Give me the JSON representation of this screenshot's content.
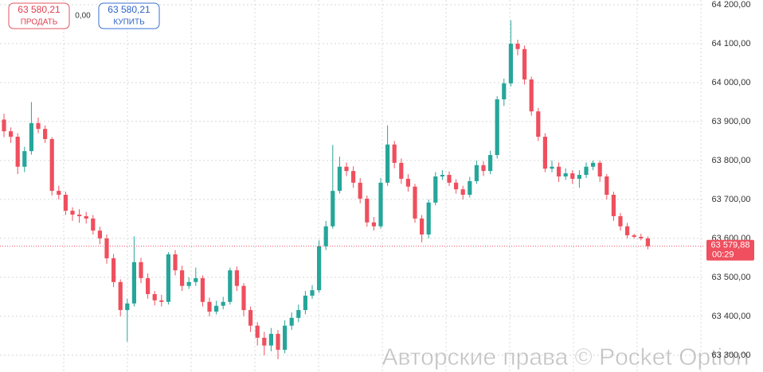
{
  "chart_data": {
    "type": "candlestick",
    "ylim": [
      63257,
      64212
    ],
    "yticks": [
      {
        "value": 63300,
        "label": "63 300,00"
      },
      {
        "value": 63400,
        "label": "63 400,00"
      },
      {
        "value": 63500,
        "label": "63 500,00"
      },
      {
        "value": 63600,
        "label": "63 600,00"
      },
      {
        "value": 63700,
        "label": "63 700,00"
      },
      {
        "value": 63800,
        "label": "63 800,00"
      },
      {
        "value": 63900,
        "label": "63 900,00"
      },
      {
        "value": 64000,
        "label": "64 000,00"
      },
      {
        "value": 64100,
        "label": "64 100,00"
      },
      {
        "value": 64200,
        "label": "64 200,00"
      }
    ],
    "grid": true,
    "up_color": "#26a69a",
    "down_color": "#ef4f5e",
    "open": [
      63905,
      63875,
      63861,
      63784,
      63824,
      63896,
      63881,
      63855,
      63722,
      63712,
      63671,
      63661,
      63657,
      63651,
      63620,
      63600,
      63549,
      63488,
      63416,
      63433,
      63539,
      63498,
      63457,
      63441,
      63437,
      63559,
      63518,
      63478,
      63488,
      63498,
      63437,
      63412,
      63427,
      63437,
      63518,
      63478,
      63416,
      63376,
      63345,
      63325,
      63355,
      63314,
      63376,
      63396,
      63416,
      63453,
      63467,
      63580,
      63631,
      63722,
      63784,
      63773,
      63743,
      63702,
      63641,
      63631,
      63743,
      63841,
      63794,
      63753,
      63733,
      63651,
      63610,
      63692,
      63759,
      63763,
      63743,
      63726,
      63712,
      63747,
      63788,
      63773,
      63814,
      63957,
      63998,
      64100,
      64086,
      64008,
      63926,
      63861,
      63779,
      63784,
      63759,
      63767,
      63753,
      63763,
      63784,
      63794,
      63759,
      63712,
      63657,
      63631,
      63608,
      63604,
      63600
    ],
    "high": [
      63920,
      63885,
      63870,
      63835,
      63950,
      63910,
      63890,
      63860,
      63735,
      63720,
      63680,
      63675,
      63668,
      63660,
      63630,
      63610,
      63560,
      63495,
      63445,
      63605,
      63550,
      63510,
      63465,
      63455,
      63565,
      63570,
      63530,
      63500,
      63525,
      63505,
      63448,
      63440,
      63450,
      63525,
      63528,
      63485,
      63425,
      63385,
      63360,
      63370,
      63365,
      63390,
      63410,
      63430,
      63465,
      63480,
      63595,
      63645,
      63840,
      63810,
      63795,
      63785,
      63755,
      63710,
      63655,
      63755,
      63890,
      63850,
      63805,
      63765,
      63740,
      63660,
      63700,
      63770,
      63775,
      63772,
      63752,
      63735,
      63758,
      63800,
      63798,
      63825,
      63965,
      64010,
      64160,
      64110,
      64095,
      64015,
      63935,
      63870,
      63800,
      63795,
      63780,
      63775,
      63775,
      63795,
      63800,
      63800,
      63765,
      63720,
      63665,
      63640,
      63612,
      63612,
      63605
    ],
    "low": [
      63860,
      63845,
      63765,
      63770,
      63815,
      63870,
      63845,
      63710,
      63700,
      63660,
      63645,
      63640,
      63638,
      63610,
      63585,
      63535,
      63475,
      63400,
      63335,
      63425,
      63485,
      63445,
      63428,
      63425,
      63430,
      63505,
      63465,
      63470,
      63478,
      63425,
      63400,
      63405,
      63418,
      63430,
      63465,
      63400,
      63360,
      63325,
      63300,
      63310,
      63290,
      63305,
      63365,
      63385,
      63405,
      63445,
      63460,
      63570,
      63625,
      63715,
      63760,
      63730,
      63690,
      63630,
      63620,
      63625,
      63735,
      63780,
      63740,
      63720,
      63640,
      63590,
      63600,
      63685,
      63750,
      63735,
      63715,
      63700,
      63705,
      63740,
      63760,
      63765,
      63805,
      63940,
      63990,
      64070,
      63995,
      63915,
      63850,
      63770,
      63770,
      63745,
      63750,
      63740,
      63730,
      63755,
      63775,
      63745,
      63700,
      63645,
      63620,
      63600,
      63600,
      63595,
      63572
    ],
    "close": [
      63875,
      63861,
      63784,
      63824,
      63896,
      63881,
      63855,
      63722,
      63712,
      63671,
      63661,
      63657,
      63651,
      63620,
      63600,
      63549,
      63488,
      63416,
      63433,
      63539,
      63498,
      63457,
      63441,
      63437,
      63559,
      63518,
      63478,
      63488,
      63498,
      63437,
      63412,
      63427,
      63437,
      63518,
      63478,
      63416,
      63376,
      63345,
      63325,
      63355,
      63314,
      63376,
      63396,
      63416,
      63453,
      63467,
      63580,
      63631,
      63722,
      63784,
      63773,
      63743,
      63702,
      63641,
      63631,
      63743,
      63841,
      63794,
      63753,
      63733,
      63651,
      63610,
      63692,
      63759,
      63763,
      63743,
      63726,
      63712,
      63747,
      63788,
      63773,
      63814,
      63957,
      63998,
      64100,
      64086,
      64008,
      63926,
      63861,
      63779,
      63784,
      63759,
      63767,
      63753,
      63763,
      63784,
      63794,
      63759,
      63712,
      63657,
      63631,
      63608,
      63604,
      63600,
      63579.88
    ],
    "current_price": {
      "value": 63579.88,
      "label": "63 579,88"
    },
    "timer": "00:29"
  },
  "toolbar": {
    "sell_price": "63 580,21",
    "sell_label": "ПРОДАТЬ",
    "spread": "0,00",
    "buy_price": "63 580,21",
    "buy_label": "КУПИТЬ"
  },
  "watermark": "Авторские права © Pocket Option"
}
